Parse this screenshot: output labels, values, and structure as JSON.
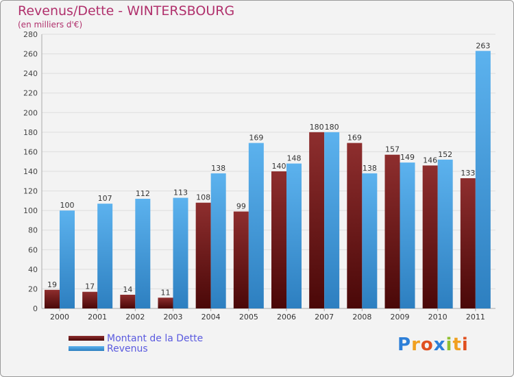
{
  "chart_data": {
    "type": "bar",
    "title": "Revenus/Dette - WINTERSBOURG",
    "subtitle": "(en milliers d'€)",
    "categories": [
      "2000",
      "2001",
      "2002",
      "2003",
      "2004",
      "2005",
      "2006",
      "2007",
      "2008",
      "2009",
      "2010",
      "2011"
    ],
    "series": [
      {
        "name": "Montant de la Dette",
        "color": "#7a1e1e",
        "values": [
          19,
          17,
          14,
          11,
          108,
          99,
          140,
          180,
          169,
          157,
          146,
          133
        ]
      },
      {
        "name": "Revenus",
        "color": "#4aa3e6",
        "values": [
          100,
          107,
          112,
          113,
          138,
          169,
          148,
          180,
          138,
          149,
          152,
          263
        ]
      }
    ],
    "ylim": [
      0,
      280
    ],
    "yticks": [
      0,
      20,
      40,
      60,
      80,
      100,
      120,
      140,
      160,
      180,
      200,
      220,
      240,
      260,
      280
    ],
    "grid": true,
    "legend_position": "bottom-left"
  },
  "logo": {
    "text": "Proxiti",
    "letters": [
      "P",
      "r",
      "o",
      "x",
      "i",
      "t",
      "i"
    ],
    "colors": [
      "#2d7fd8",
      "#f0a020",
      "#e05020",
      "#2d7fd8",
      "#90c030",
      "#f0a020",
      "#e05020"
    ]
  }
}
